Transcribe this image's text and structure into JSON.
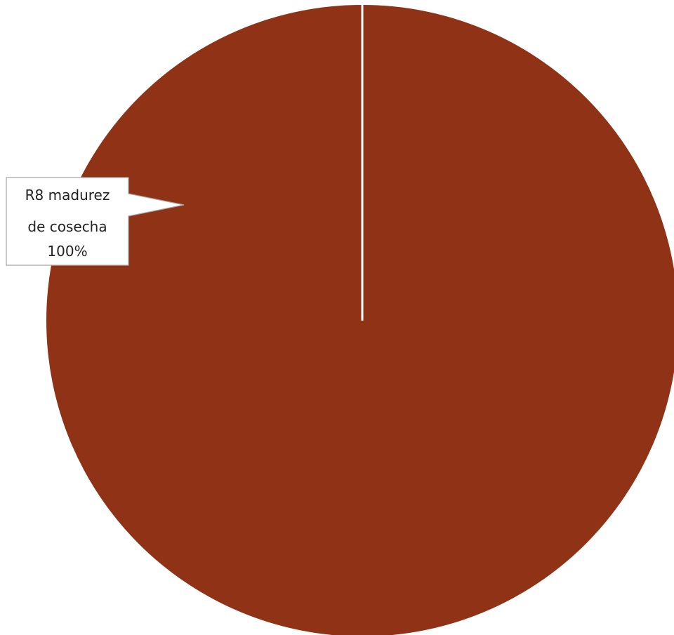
{
  "chart_data": {
    "type": "pie",
    "slices": [
      {
        "label_lines": [
          "R8 madurez",
          "de cosecha"
        ],
        "percent_label": "100%",
        "value": 100,
        "color": "#8f3216"
      }
    ],
    "separator_color": "#ffffff",
    "callout_border_color": "#a6a6a6"
  }
}
